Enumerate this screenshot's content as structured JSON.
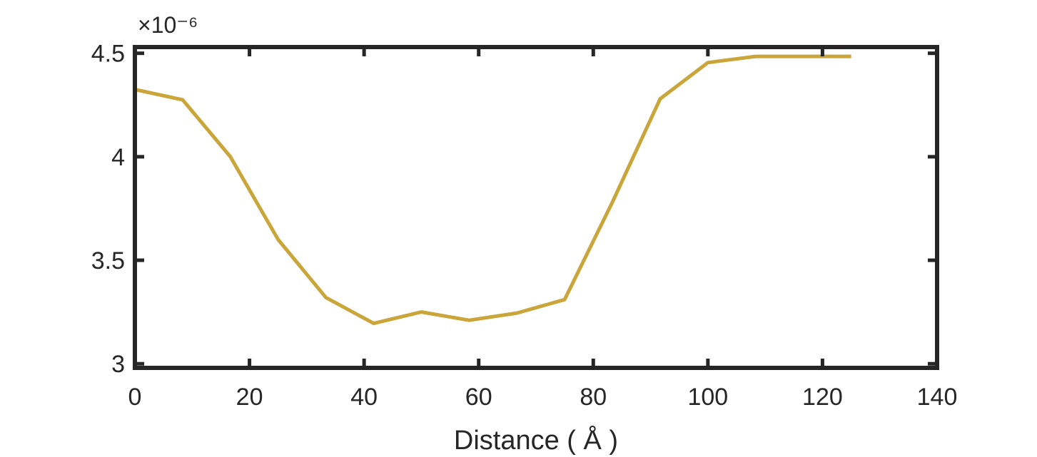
{
  "chart_data": {
    "type": "line",
    "xlabel": "Distance ( Å )",
    "ylabel": "",
    "y_exponent_label": "×10⁻⁶",
    "xlim": [
      0,
      140
    ],
    "ylim": [
      2.98,
      4.53
    ],
    "xticks": [
      0,
      20,
      40,
      60,
      80,
      100,
      120,
      140
    ],
    "xtick_labels": [
      "0",
      "20",
      "40",
      "60",
      "80",
      "100",
      "120",
      "140"
    ],
    "yticks": [
      3,
      3.5,
      4,
      4.5
    ],
    "ytick_labels": [
      "3",
      "3.5",
      "4",
      "4.5"
    ],
    "grid": false,
    "series": [
      {
        "color": "#c9a53a",
        "x": [
          0,
          8.33,
          16.67,
          25,
          33.33,
          41.67,
          50,
          58.33,
          66.67,
          75,
          83.33,
          91.67,
          100,
          108.33,
          116.67,
          125
        ],
        "values": [
          4.325,
          4.275,
          4.0,
          3.6,
          3.32,
          3.195,
          3.25,
          3.21,
          3.245,
          3.31,
          3.78,
          4.28,
          4.455,
          4.485,
          4.485,
          4.485
        ]
      }
    ]
  }
}
